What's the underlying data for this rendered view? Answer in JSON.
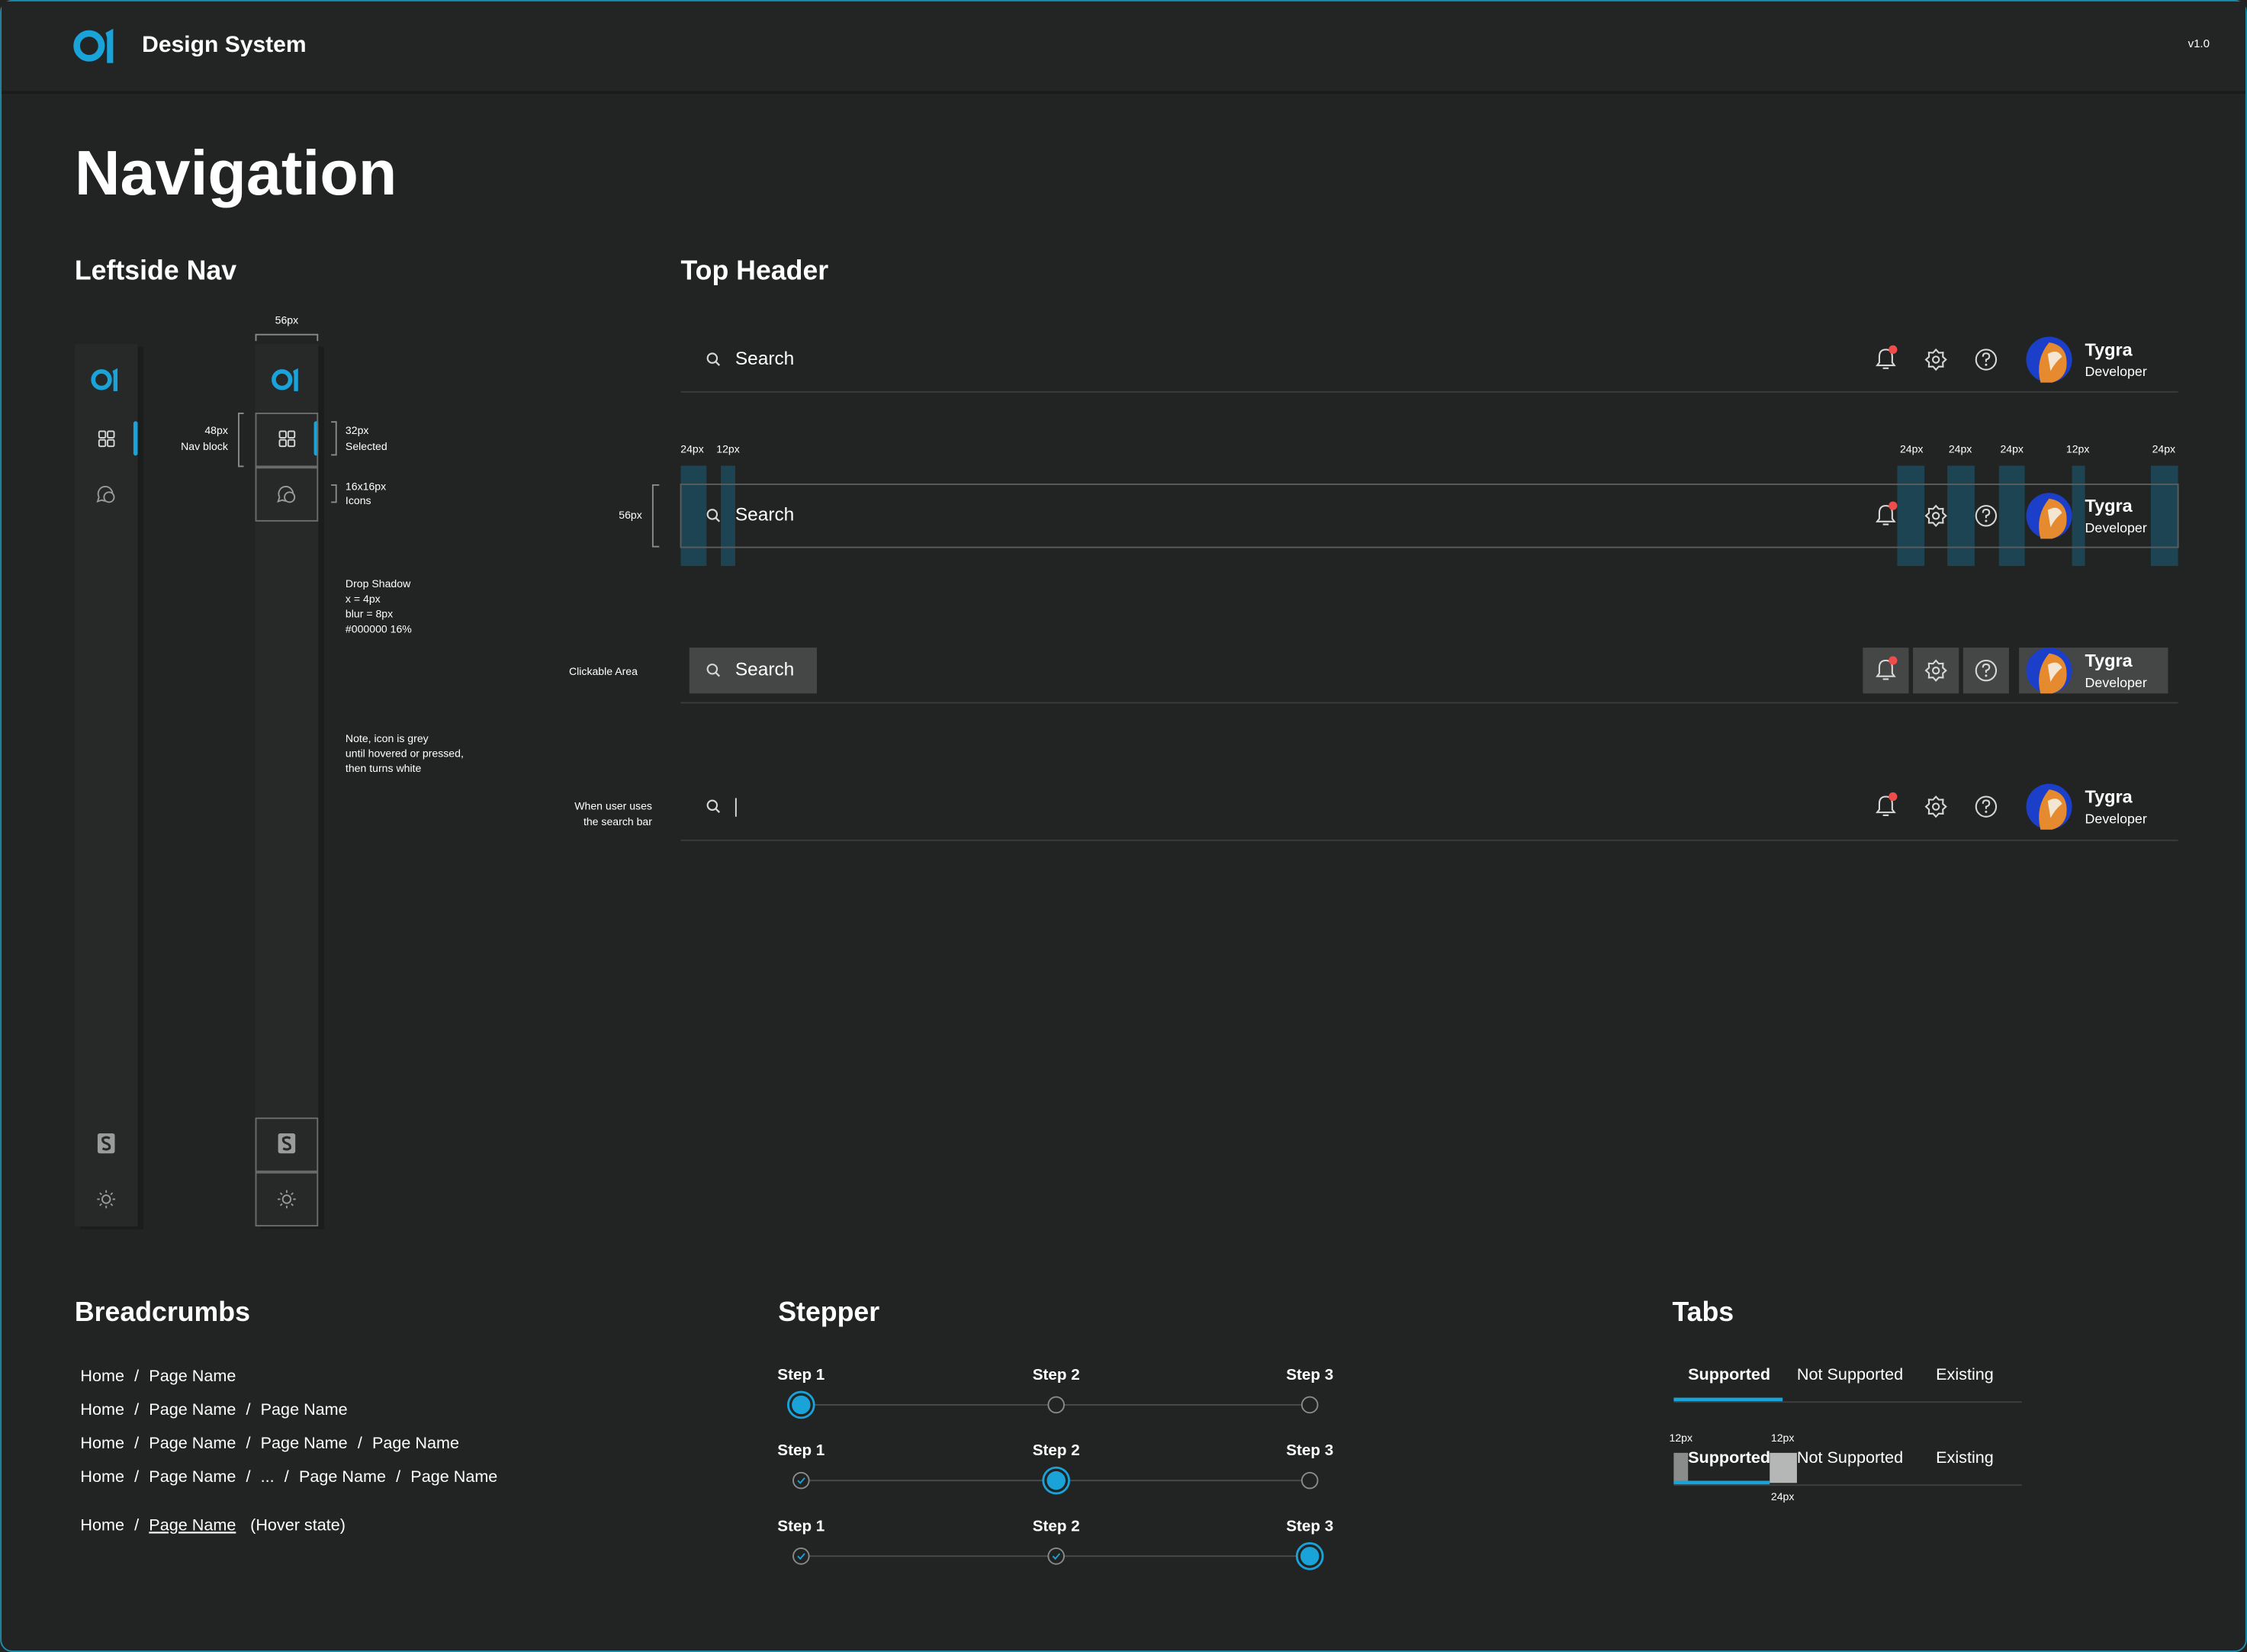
{
  "header": {
    "brand": "Design System",
    "version": "v1.0"
  },
  "page_title": "Navigation",
  "leftside_nav": {
    "title": "Leftside Nav",
    "width_label": "56px",
    "nav_block": [
      "48px",
      "Nav block"
    ],
    "selected": [
      "32px",
      "Selected"
    ],
    "icons": [
      "16x16px",
      "Icons"
    ],
    "shadow": [
      "Drop Shadow",
      "x = 4px",
      "blur = 8px",
      "#000000 16%"
    ],
    "note": [
      "Note, icon is grey",
      "until hovered or pressed,",
      "then turns white"
    ]
  },
  "top_header": {
    "title": "Top Header",
    "search": "Search",
    "user": {
      "name": "Tygra",
      "role": "Developer"
    },
    "spacing": [
      "24px",
      "12px",
      "24px",
      "24px",
      "24px",
      "12px",
      "24px"
    ],
    "height_label": "56px",
    "clickable_label": "Clickable Area",
    "typing_label": [
      "When user uses",
      "the search bar"
    ]
  },
  "breadcrumbs": {
    "title": "Breadcrumbs",
    "separator": "/",
    "rows": [
      [
        "Home",
        "Page Name"
      ],
      [
        "Home",
        "Page Name",
        "Page Name"
      ],
      [
        "Home",
        "Page Name",
        "Page Name",
        "Page Name"
      ],
      [
        "Home",
        "Page Name",
        "...",
        "Page Name",
        "Page Name"
      ]
    ],
    "hover": {
      "items": [
        "Home",
        "Page Name"
      ],
      "note": "(Hover state)"
    }
  },
  "stepper": {
    "title": "Stepper",
    "steps": [
      "Step 1",
      "Step 2",
      "Step 3"
    ]
  },
  "tabs": {
    "title": "Tabs",
    "items": [
      "Supported",
      "Not Supported",
      "Existing"
    ],
    "spacing": [
      "12px",
      "12px",
      "24px"
    ]
  }
}
